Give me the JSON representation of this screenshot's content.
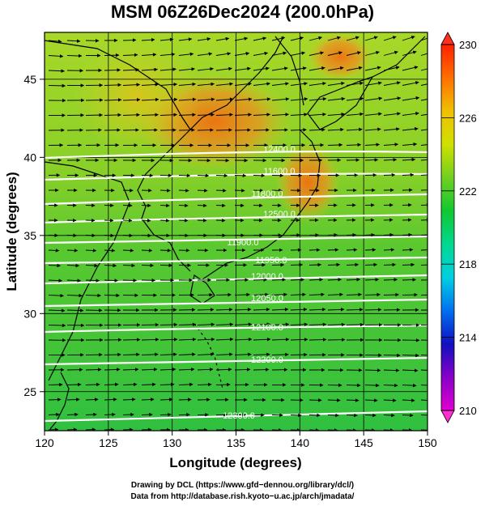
{
  "title": "MSM 06Z26Dec2024 (200.0hPa)",
  "x_label": "Longitude (degrees)",
  "y_label": "Latitude  (degrees)",
  "x_ticks": [
    "120",
    "125",
    "130",
    "135",
    "140",
    "145",
    "150"
  ],
  "y_ticks": [
    "25",
    "30",
    "35",
    "40",
    "45"
  ],
  "colorbar": {
    "ticks": [
      "210",
      "214",
      "218",
      "222",
      "226",
      "230"
    ],
    "min": 210,
    "max": 230,
    "colors": [
      "#e000d0",
      "#8800c8",
      "#1010c0",
      "#0070f0",
      "#00d0e0",
      "#00d890",
      "#10c830",
      "#70d020",
      "#d0e000",
      "#f0c000",
      "#ff7000",
      "#ff2000"
    ]
  },
  "contour_labels": [
    "11600.0",
    "11800.0",
    "11900.0",
    "11950.0",
    "12000.0",
    "12050.0",
    "12100.0",
    "12200.0",
    "12300.0",
    "12400.0",
    "12500.0"
  ],
  "credits": {
    "line1": "Drawing by DCL (https://www.gfd−dennou.org/library/dcl/)",
    "line2": "Data from http://database.rish.kyoto−u.ac.jp/arch/jmadata/"
  }
}
